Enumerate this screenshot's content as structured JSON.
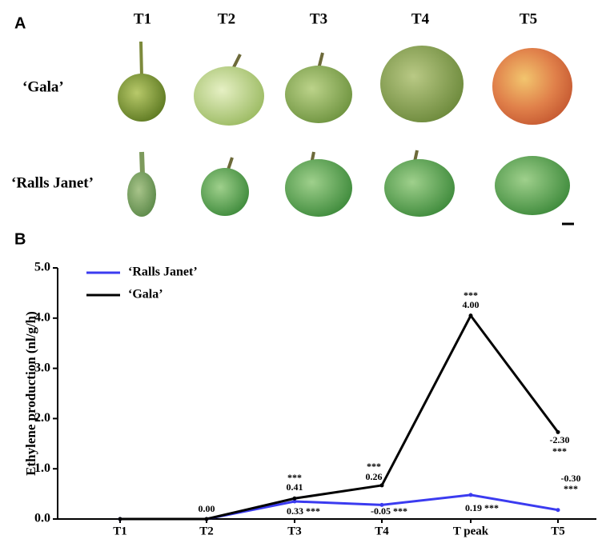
{
  "panel_a": {
    "label": "A",
    "columns": [
      "T1",
      "T2",
      "T3",
      "T4",
      "T5"
    ],
    "rows": [
      "‘Gala’",
      "‘Ralls Janet’"
    ]
  },
  "chart_data": {
    "type": "line",
    "panel_label": "B",
    "y_label": "Ethylene production (nl/g/h)",
    "categories": [
      "T1",
      "T2",
      "T3",
      "T4",
      "T peak",
      "T5"
    ],
    "series": [
      {
        "name": "‘Ralls Janet’",
        "color": "#3b3bf0",
        "values": [
          0,
          0,
          0.35,
          0.28,
          0.48,
          0.18
        ]
      },
      {
        "name": "‘Gala’",
        "color": "#000000",
        "values": [
          0,
          0,
          0.41,
          0.67,
          4.05,
          1.73
        ]
      }
    ],
    "ylim": [
      0,
      5
    ],
    "yticks": [
      {
        "value": 0,
        "label": "0.0"
      },
      {
        "value": 1,
        "label": "1.0"
      },
      {
        "value": 2,
        "label": "2.0"
      },
      {
        "value": 3,
        "label": "3.0"
      },
      {
        "value": 4,
        "label": "4.0"
      },
      {
        "value": 5,
        "label": "5.0"
      }
    ],
    "annotations": [
      "0.00",
      "***",
      "0.41",
      "0.33 ***",
      "***",
      "0.26",
      "-0.05 ***",
      "***",
      "4.00",
      "0.19 ***",
      "-2.30",
      "***",
      "-0.30",
      "***"
    ],
    "legend": "upper-left"
  }
}
